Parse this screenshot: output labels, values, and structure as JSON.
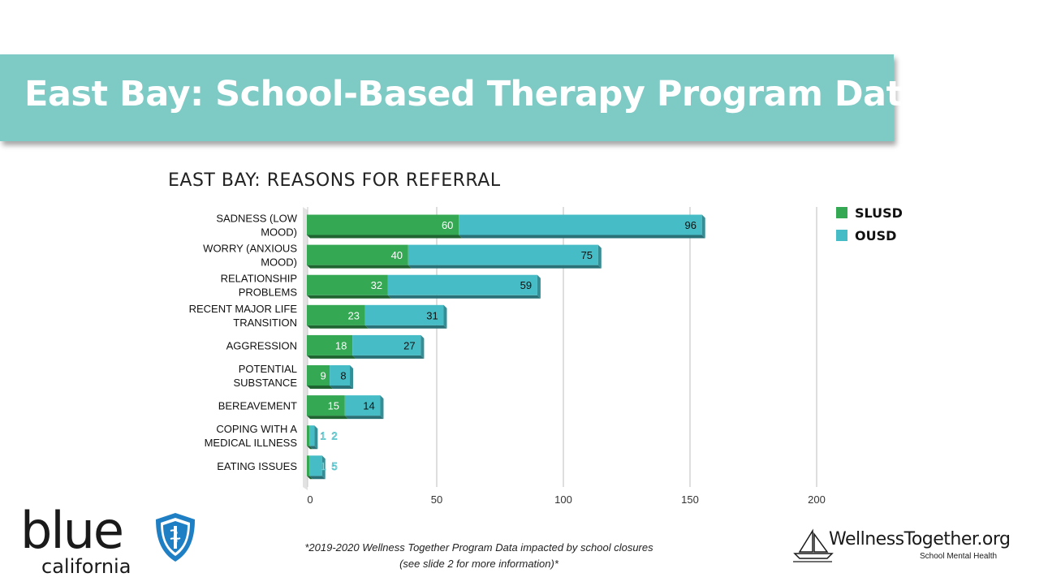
{
  "page": {
    "title": "East Bay: School-Based Therapy Program Data",
    "footnote_line1": "*2019-2020 Wellness Together Program Data impacted by school closures",
    "footnote_line2": "(see slide 2 for more information)*"
  },
  "logos": {
    "blue_word": "blue",
    "blue_sub": "california",
    "wt_word": "WellnessTogether.org",
    "wt_sub": "School Mental Health"
  },
  "colors": {
    "banner": "#7ecac5",
    "slusd": "#34a853",
    "ousd": "#46bdc6"
  },
  "chart_data": {
    "type": "bar",
    "orientation": "horizontal",
    "stacked": true,
    "title": "EAST BAY: REASONS FOR REFERRAL",
    "categories": [
      [
        "SADNESS (LOW",
        "MOOD)"
      ],
      [
        "WORRY (ANXIOUS",
        "MOOD)"
      ],
      [
        "RELATIONSHIP",
        "PROBLEMS"
      ],
      [
        "RECENT MAJOR LIFE",
        "TRANSITION"
      ],
      [
        "AGGRESSION"
      ],
      [
        "POTENTIAL",
        "SUBSTANCE"
      ],
      [
        "BEREAVEMENT"
      ],
      [
        "COPING WITH A",
        "MEDICAL ILLNESS"
      ],
      [
        "EATING ISSUES"
      ]
    ],
    "series": [
      {
        "name": "SLUSD",
        "color": "#34a853",
        "values": [
          60,
          40,
          32,
          23,
          18,
          9,
          15,
          1,
          1
        ]
      },
      {
        "name": "OUSD",
        "color": "#46bdc6",
        "values": [
          96,
          75,
          59,
          31,
          27,
          8,
          14,
          2,
          5
        ]
      }
    ],
    "xlim": [
      0,
      200
    ],
    "xticks": [
      0,
      50,
      100,
      150,
      200
    ],
    "grid": true,
    "legend_position": "top-right"
  }
}
